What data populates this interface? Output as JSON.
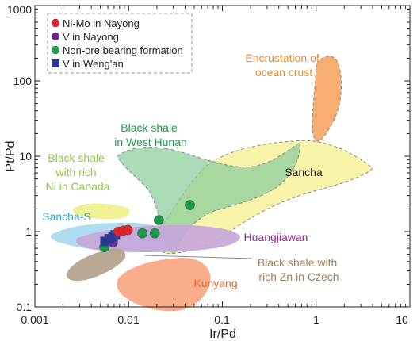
{
  "chart_data": {
    "type": "scatter",
    "xlabel": "Ir/Pd",
    "ylabel": "Pt/Pd",
    "xscale": "log",
    "yscale": "log",
    "xlim": [
      0.001,
      10
    ],
    "ylim": [
      0.1,
      1000
    ],
    "xticks": [
      0.001,
      0.01,
      0.1,
      1,
      10
    ],
    "xtick_labels": [
      "0.001",
      "0.01",
      "0.1",
      "1",
      "10"
    ],
    "yticks": [
      0.1,
      1,
      10,
      100,
      1000
    ],
    "ytick_labels": [
      "0.1",
      "1",
      "10",
      "100",
      "1000"
    ],
    "grid": false,
    "legend_position": "top-left",
    "legend": [
      {
        "label": "Ni-Mo in Nayong",
        "marker": "circle",
        "color": "#e8202a"
      },
      {
        "label": "V in Nayong",
        "marker": "circle",
        "color": "#6a2c91"
      },
      {
        "label": "Non-ore bearing formation",
        "marker": "circle",
        "color": "#1a9a4a"
      },
      {
        "label": "V in Weng'an",
        "marker": "square",
        "color": "#2b3990"
      }
    ],
    "fields": [
      {
        "label": "Encrustation of ocean crust",
        "color": "#f7a561",
        "label_color": "#f08a2e"
      },
      {
        "label": "Black shale in West Hunan",
        "color": "#8ecf9e",
        "label_color": "#1a9a4a"
      },
      {
        "label": "Black shale with rich Ni in Canada",
        "color": "#eef08c",
        "label_color": "#8dc63f"
      },
      {
        "label": "Sancha",
        "color": "#f6f29a",
        "label_color": "#231f20"
      },
      {
        "label": "Sancha-S",
        "color": "#a7d8f0",
        "label_color": "#29abe2"
      },
      {
        "label": "Huangjiawan",
        "color": "#c7a6d9",
        "label_color": "#92278f"
      },
      {
        "label": "Black shale with rich Zn in Czech",
        "color": "#b5a38d",
        "label_color": "#a67c52"
      },
      {
        "label": "Kunyang",
        "color": "#f9a987",
        "label_color": "#f26522"
      }
    ],
    "series": [
      {
        "name": "Ni-Mo in Nayong",
        "points": [
          [
            0.0078,
            1.0
          ],
          [
            0.0088,
            1.03
          ],
          [
            0.0098,
            1.05
          ]
        ]
      },
      {
        "name": "V in Nayong",
        "points": [
          [
            0.0068,
            0.72
          ]
        ]
      },
      {
        "name": "Non-ore bearing formation",
        "points": [
          [
            0.0055,
            0.62
          ],
          [
            0.014,
            0.95
          ],
          [
            0.019,
            0.95
          ],
          [
            0.021,
            1.42
          ],
          [
            0.045,
            2.25
          ]
        ]
      },
      {
        "name": "V in Weng'an",
        "points": [
          [
            0.0056,
            0.74
          ],
          [
            0.0062,
            0.8
          ],
          [
            0.0068,
            0.86
          ],
          [
            0.0072,
            0.9
          ]
        ]
      }
    ]
  }
}
